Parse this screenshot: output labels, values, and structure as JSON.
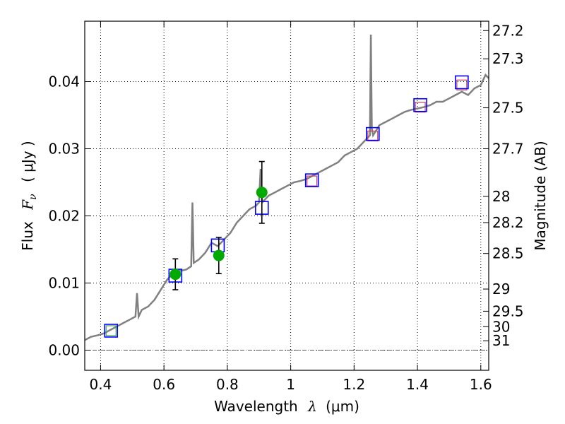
{
  "chart_data": {
    "type": "line",
    "title": "",
    "xlabel_text": "Wavelength",
    "xlabel_symbol": "λ",
    "xlabel_unit": "(μm)",
    "ylabel_text": "Flux",
    "ylabel_symbol": "F",
    "ylabel_subscript": "ν",
    "ylabel_unit": "( μJy )",
    "y2label": "Magnitude (AB)",
    "xlim": [
      0.35,
      1.625
    ],
    "ylim": [
      -0.003,
      0.049
    ],
    "grid": true,
    "x_ticks": [
      0.4,
      0.6,
      0.8,
      1.0,
      1.2,
      1.4,
      1.6
    ],
    "x_tick_labels": [
      "0.4",
      "0.6",
      "0.8",
      "1",
      "1.2",
      "1.4",
      "1.6"
    ],
    "y_ticks": [
      0.0,
      0.01,
      0.02,
      0.03,
      0.04
    ],
    "y_tick_labels": [
      "0.00",
      "0.01",
      "0.02",
      "0.03",
      "0.04"
    ],
    "y2_ticks": [
      {
        "label": "27.2",
        "flux": 0.0476
      },
      {
        "label": "27.3",
        "flux": 0.0434
      },
      {
        "label": "27.5",
        "flux": 0.0361
      },
      {
        "label": "27.7",
        "flux": 0.03
      },
      {
        "label": "28",
        "flux": 0.0229
      },
      {
        "label": "28.2",
        "flux": 0.019
      },
      {
        "label": "28.5",
        "flux": 0.0144
      },
      {
        "label": "29",
        "flux": 0.0091
      },
      {
        "label": "29.5",
        "flux": 0.0058
      },
      {
        "label": "30",
        "flux": 0.0035
      },
      {
        "label": "31",
        "flux": 0.0014
      }
    ],
    "colors": {
      "spectrum": "#808080",
      "model_box": "#0000ff",
      "observed_box": "#c04060",
      "observed_box_green": "#44aa44",
      "hst_points": "#00aa00",
      "error_bars": "#000000",
      "grid": "#000000",
      "zero_line": "#555555"
    },
    "series": [
      {
        "name": "Spectrum",
        "x": [
          0.35,
          0.37,
          0.39,
          0.41,
          0.43,
          0.45,
          0.47,
          0.49,
          0.51,
          0.515,
          0.52,
          0.525,
          0.53,
          0.55,
          0.57,
          0.59,
          0.61,
          0.63,
          0.65,
          0.67,
          0.686,
          0.69,
          0.694,
          0.71,
          0.73,
          0.75,
          0.77,
          0.79,
          0.81,
          0.83,
          0.85,
          0.87,
          0.89,
          0.9,
          0.905,
          0.91,
          0.93,
          0.95,
          0.97,
          0.99,
          1.01,
          1.03,
          1.05,
          1.07,
          1.09,
          1.11,
          1.13,
          1.15,
          1.17,
          1.19,
          1.21,
          1.23,
          1.25,
          1.253,
          1.256,
          1.26,
          1.28,
          1.3,
          1.32,
          1.34,
          1.36,
          1.38,
          1.4,
          1.42,
          1.44,
          1.46,
          1.48,
          1.5,
          1.52,
          1.54,
          1.56,
          1.58,
          1.6,
          1.615,
          1.625
        ],
        "y": [
          0.0015,
          0.002,
          0.0022,
          0.0025,
          0.003,
          0.0035,
          0.004,
          0.0045,
          0.005,
          0.0085,
          0.005,
          0.0055,
          0.006,
          0.0065,
          0.0075,
          0.009,
          0.0105,
          0.0115,
          0.0118,
          0.012,
          0.0125,
          0.022,
          0.013,
          0.0135,
          0.0145,
          0.016,
          0.0155,
          0.0165,
          0.0175,
          0.019,
          0.02,
          0.021,
          0.0215,
          0.022,
          0.027,
          0.022,
          0.023,
          0.0235,
          0.024,
          0.0245,
          0.025,
          0.0252,
          0.0255,
          0.026,
          0.0265,
          0.027,
          0.0275,
          0.028,
          0.029,
          0.0295,
          0.03,
          0.031,
          0.032,
          0.047,
          0.033,
          0.032,
          0.0335,
          0.034,
          0.0345,
          0.035,
          0.0355,
          0.0358,
          0.036,
          0.0362,
          0.0365,
          0.037,
          0.037,
          0.0375,
          0.038,
          0.0385,
          0.038,
          0.039,
          0.0395,
          0.041,
          0.0405
        ]
      },
      {
        "name": "Model photometry",
        "x": [
          0.433,
          0.636,
          0.77,
          0.909,
          1.067,
          1.259,
          1.409,
          1.54
        ],
        "y": [
          0.0029,
          0.0111,
          0.0156,
          0.0212,
          0.0253,
          0.0322,
          0.0365,
          0.0399
        ]
      },
      {
        "name": "Observed photometry",
        "x": [
          0.433,
          1.067,
          1.259,
          1.409,
          1.54
        ],
        "y": [
          0.0029,
          0.0252,
          0.0319,
          0.0362,
          0.0395
        ]
      },
      {
        "name": "HST photometry",
        "x": [
          0.636,
          0.773,
          0.909
        ],
        "y": [
          0.0113,
          0.0141,
          0.0235
        ],
        "yerr": [
          0.0023,
          0.0027,
          0.0046
        ]
      }
    ]
  }
}
